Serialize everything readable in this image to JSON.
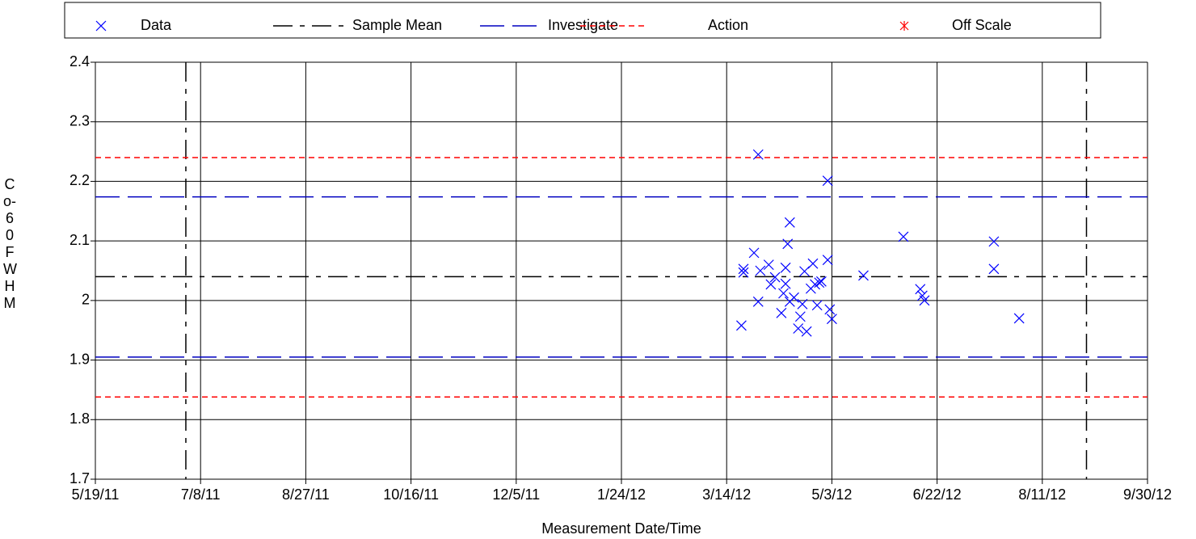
{
  "chart_data": {
    "type": "scatter",
    "x_label": "Measurement Date/Time",
    "y_label": "Co-60 FWHM",
    "xlim": [
      "5/19/11",
      "9/30/12"
    ],
    "xticks": [
      "5/19/11",
      "7/8/11",
      "8/27/11",
      "10/16/11",
      "12/5/11",
      "1/24/12",
      "3/14/12",
      "5/3/12",
      "6/22/12",
      "8/11/12",
      "9/30/12"
    ],
    "ylim": [
      1.7,
      2.4
    ],
    "yticks": [
      1.7,
      1.8,
      1.9,
      2,
      2.1,
      2.2,
      2.3,
      2.4
    ],
    "grid": true,
    "series": [
      {
        "name": "Data",
        "color": "#0000ff",
        "x": [
          "3/21/12",
          "3/22/12",
          "3/22/12",
          "3/27/12",
          "3/29/12",
          "3/29/12",
          "3/30/12",
          "4/3/12",
          "4/4/12",
          "4/6/12",
          "4/9/12",
          "4/10/12",
          "4/11/12",
          "4/11/12",
          "4/12/12",
          "4/13/12",
          "4/13/12",
          "4/15/12",
          "4/17/12",
          "4/18/12",
          "4/19/12",
          "4/20/12",
          "4/21/12",
          "4/23/12",
          "4/24/12",
          "4/25/12",
          "4/26/12",
          "4/27/12",
          "4/28/12",
          "5/1/12",
          "5/1/12",
          "5/2/12",
          "5/3/12",
          "5/18/12",
          "6/6/12",
          "6/14/12",
          "6/15/12",
          "6/16/12",
          "7/19/12",
          "7/19/12",
          "7/31/12"
        ],
        "values": [
          1.958,
          2.053,
          2.047,
          2.08,
          2.245,
          1.998,
          2.05,
          2.06,
          2.027,
          2.039,
          1.979,
          2.012,
          2.028,
          2.055,
          2.095,
          2.131,
          1.998,
          2.005,
          1.953,
          1.973,
          1.994,
          2.049,
          1.948,
          2.02,
          2.062,
          2.027,
          1.992,
          2.03,
          2.032,
          2.201,
          2.068,
          1.985,
          1.969,
          2.042,
          2.107,
          2.019,
          2.008,
          2.0,
          2.099,
          2.053,
          1.97
        ]
      }
    ],
    "reference_lines": [
      {
        "name": "Sample Mean",
        "color": "#000000",
        "dash": "dash-dot",
        "values": [
          2.04
        ]
      },
      {
        "name": "Investigate",
        "color": "#0000c0",
        "dash": "long-dash",
        "values": [
          2.174,
          1.905
        ]
      },
      {
        "name": "Action",
        "color": "#ff0000",
        "dash": "short-dash",
        "values": [
          2.24,
          1.838
        ]
      }
    ],
    "off_scale": {
      "name": "Off Scale",
      "color": "#ff0000"
    },
    "xlines": [
      "7/1/11",
      "9/1/12"
    ]
  }
}
